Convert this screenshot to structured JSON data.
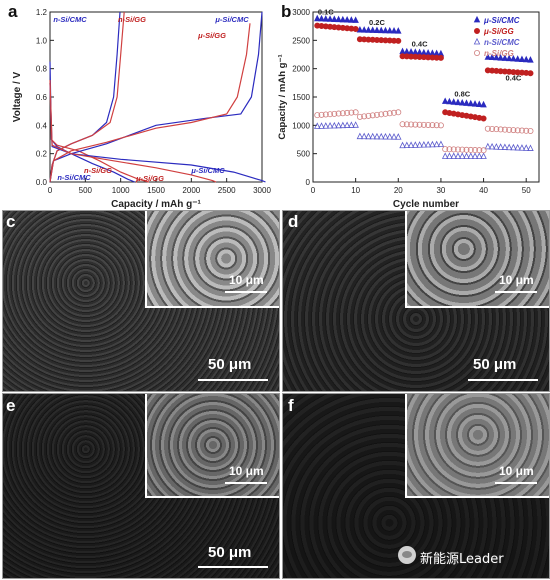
{
  "panels": {
    "a": {
      "letter": "a"
    },
    "b": {
      "letter": "b"
    },
    "c": {
      "letter": "c",
      "inset_scale": "10 μm",
      "main_scale": "50 μm"
    },
    "d": {
      "letter": "d",
      "inset_scale": "10 μm",
      "main_scale": "50 μm"
    },
    "e": {
      "letter": "e",
      "inset_scale": "10 μm",
      "main_scale": "50 μm"
    },
    "f": {
      "letter": "f",
      "inset_scale": "10 μm"
    }
  },
  "watermark": "新能源Leader",
  "chart_data": [
    {
      "type": "line",
      "panel": "a",
      "xlabel": "Capacity / mAh g⁻¹",
      "ylabel": "Voltage / V",
      "xlim": [
        0,
        3000
      ],
      "ylim": [
        0,
        1.2
      ],
      "xticks": [
        0,
        500,
        1000,
        1500,
        2000,
        2500,
        3000
      ],
      "yticks": [
        0.0,
        0.2,
        0.4,
        0.6,
        0.8,
        1.0,
        1.2
      ],
      "series": [
        {
          "name": "n-Si/CMC",
          "color": "#2b2bbf",
          "charge": [
            [
              0,
              0.0
            ],
            [
              30,
              0.12
            ],
            [
              100,
              0.22
            ],
            [
              300,
              0.27
            ],
            [
              600,
              0.33
            ],
            [
              800,
              0.42
            ],
            [
              900,
              0.6
            ],
            [
              950,
              0.9
            ],
            [
              990,
              1.2
            ]
          ],
          "discharge": [
            [
              0,
              0.85
            ],
            [
              20,
              0.3
            ],
            [
              100,
              0.25
            ],
            [
              300,
              0.2
            ],
            [
              600,
              0.13
            ],
            [
              900,
              0.07
            ],
            [
              1100,
              0.02
            ],
            [
              1200,
              0.0
            ]
          ]
        },
        {
          "name": "n-Si/GG",
          "color": "#d04040",
          "charge": [
            [
              0,
              0.0
            ],
            [
              30,
              0.12
            ],
            [
              100,
              0.22
            ],
            [
              300,
              0.27
            ],
            [
              600,
              0.33
            ],
            [
              850,
              0.42
            ],
            [
              950,
              0.6
            ],
            [
              1000,
              0.9
            ],
            [
              1050,
              1.2
            ]
          ],
          "discharge": [
            [
              0,
              0.7
            ],
            [
              20,
              0.3
            ],
            [
              100,
              0.26
            ],
            [
              400,
              0.22
            ],
            [
              700,
              0.15
            ],
            [
              1000,
              0.07
            ],
            [
              1250,
              0.02
            ],
            [
              1400,
              0.0
            ]
          ]
        },
        {
          "name": "μ-Si/CMC",
          "color": "#2b2bbf",
          "charge": [
            [
              0,
              0.0
            ],
            [
              50,
              0.15
            ],
            [
              300,
              0.2
            ],
            [
              800,
              0.27
            ],
            [
              1500,
              0.4
            ],
            [
              2200,
              0.45
            ],
            [
              2700,
              0.48
            ],
            [
              2850,
              0.6
            ],
            [
              2950,
              0.9
            ],
            [
              3000,
              1.2
            ]
          ],
          "discharge": [
            [
              0,
              0.7
            ],
            [
              30,
              0.25
            ],
            [
              300,
              0.2
            ],
            [
              1000,
              0.16
            ],
            [
              2000,
              0.12
            ],
            [
              2600,
              0.07
            ],
            [
              3000,
              0.01
            ],
            [
              3050,
              0.0
            ]
          ]
        },
        {
          "name": "μ-Si/GG",
          "color": "#d04040",
          "charge": [
            [
              0,
              0.0
            ],
            [
              50,
              0.15
            ],
            [
              300,
              0.22
            ],
            [
              800,
              0.28
            ],
            [
              1500,
              0.38
            ],
            [
              2000,
              0.42
            ],
            [
              2500,
              0.48
            ],
            [
              2650,
              0.6
            ],
            [
              2780,
              0.9
            ],
            [
              2830,
              1.12
            ]
          ],
          "discharge": [
            [
              0,
              0.72
            ],
            [
              30,
              0.26
            ],
            [
              300,
              0.2
            ],
            [
              900,
              0.15
            ],
            [
              1500,
              0.1
            ],
            [
              2000,
              0.05
            ],
            [
              2300,
              0.01
            ],
            [
              2350,
              0.0
            ]
          ]
        }
      ],
      "annotations": [
        "n-Si/CMC",
        "n-Si/GG",
        "μ-Si/GG",
        "μ-Si/CMC",
        "n-Si/CMC",
        "n-Si/GG",
        "μ-Si/GG",
        "μ-Si/CMC"
      ]
    },
    {
      "type": "scatter",
      "panel": "b",
      "xlabel": "Cycle number",
      "ylabel": "Capacity / mAh g⁻¹",
      "xlim": [
        0,
        53
      ],
      "ylim": [
        0,
        3000
      ],
      "xticks": [
        0,
        10,
        20,
        30,
        40,
        50
      ],
      "yticks": [
        0,
        500,
        1000,
        1500,
        2000,
        2500,
        3000
      ],
      "rate_labels": [
        {
          "text": "0.1C",
          "x": 3,
          "y": 2960
        },
        {
          "text": "0.2C",
          "x": 15,
          "y": 2770
        },
        {
          "text": "0.4C",
          "x": 25,
          "y": 2390
        },
        {
          "text": "0.8C",
          "x": 35,
          "y": 1510
        },
        {
          "text": "0.4C",
          "x": 47,
          "y": 1790
        }
      ],
      "legend": "top-right",
      "series": [
        {
          "name": "μ-Si/CMC",
          "marker": "triangle-filled",
          "color": "#2b2bbf",
          "segments": [
            [
              1,
              10,
              2880,
              2850
            ],
            [
              11,
              20,
              2680,
              2660
            ],
            [
              21,
              30,
              2300,
              2260
            ],
            [
              31,
              40,
              1420,
              1360
            ],
            [
              41,
              51,
              2200,
              2150
            ]
          ]
        },
        {
          "name": "μ-Si/GG",
          "marker": "circle-filled",
          "color": "#c02020",
          "segments": [
            [
              1,
              10,
              2760,
              2700
            ],
            [
              11,
              20,
              2520,
              2490
            ],
            [
              21,
              30,
              2220,
              2190
            ],
            [
              31,
              40,
              1230,
              1120
            ],
            [
              41,
              51,
              1970,
              1920
            ]
          ]
        },
        {
          "name": "n-Si/CMC",
          "marker": "triangle-open",
          "color": "#5a5acc",
          "segments": [
            [
              1,
              10,
              980,
              1000
            ],
            [
              11,
              20,
              800,
              790
            ],
            [
              21,
              30,
              640,
              660
            ],
            [
              31,
              40,
              450,
              450
            ],
            [
              41,
              51,
              620,
              590
            ]
          ]
        },
        {
          "name": "n-Si/GG",
          "marker": "circle-open",
          "color": "#d08080",
          "segments": [
            [
              1,
              10,
              1180,
              1230
            ],
            [
              11,
              20,
              1150,
              1230
            ],
            [
              21,
              30,
              1020,
              1000
            ],
            [
              31,
              40,
              580,
              560
            ],
            [
              41,
              51,
              940,
              900
            ]
          ]
        }
      ]
    }
  ]
}
